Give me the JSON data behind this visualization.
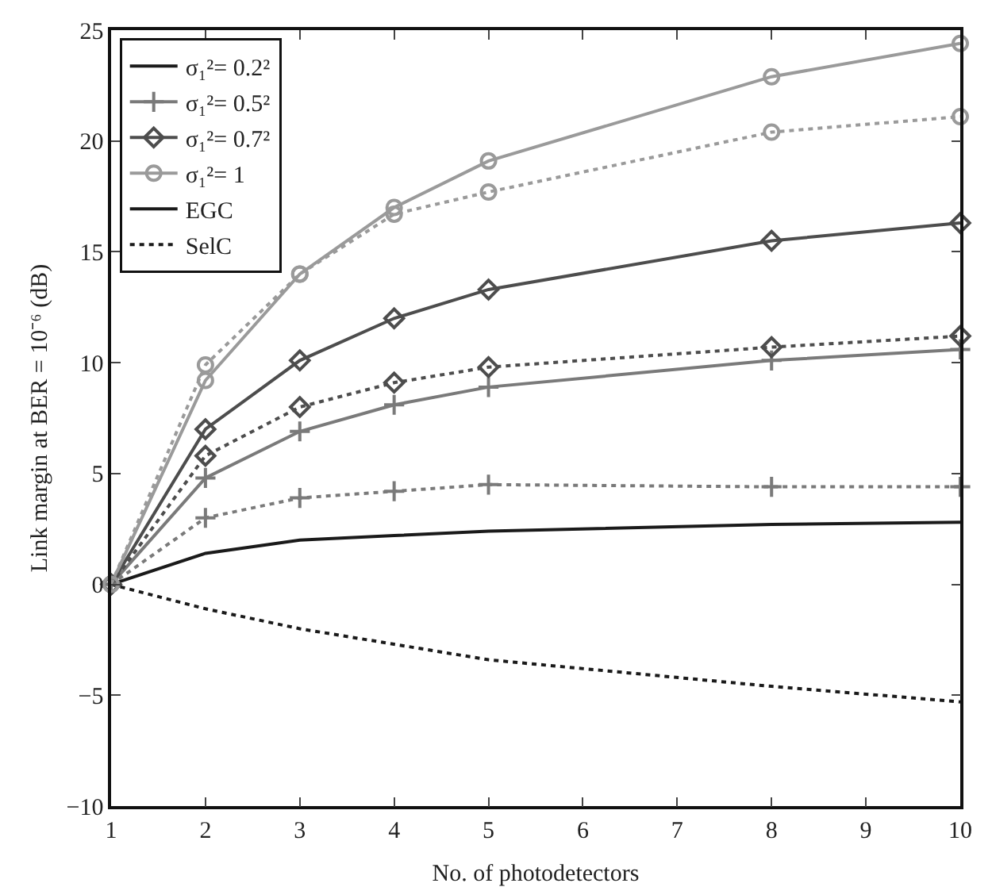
{
  "chart_data": {
    "type": "line",
    "xlabel": "No. of photodetectors",
    "ylabel": "Link margin at BER = 10⁻⁶ (dB)",
    "x": [
      1,
      2,
      3,
      4,
      5,
      8,
      10
    ],
    "series": [
      {
        "name": "σ₁²= 0.2²",
        "color": "#1a1a1a",
        "marker": "none",
        "line_style": "solid",
        "values": [
          0,
          1.4,
          2.0,
          2.2,
          2.4,
          2.7,
          2.8
        ]
      },
      {
        "name": "σ₁²= 0.5²",
        "color": "#7a7a7a",
        "marker": "cross",
        "line_style": "solid",
        "values": [
          0,
          4.8,
          6.9,
          8.1,
          8.9,
          10.1,
          10.6
        ]
      },
      {
        "name": "σ₁²= 0.7²",
        "color": "#4d4d4d",
        "marker": "diamond",
        "line_style": "solid",
        "values": [
          0,
          7.0,
          10.1,
          12.0,
          13.3,
          15.5,
          16.3
        ]
      },
      {
        "name": "σ₁²= 1",
        "color": "#9a9a9a",
        "marker": "circle",
        "line_style": "solid",
        "values": [
          0,
          9.2,
          14.0,
          17.0,
          19.1,
          22.9,
          24.4
        ]
      },
      {
        "color": "#1a1a1a",
        "marker": "none",
        "line_style": "dotted",
        "values": [
          0,
          -1.1,
          -2.0,
          -2.7,
          -3.4,
          -4.6,
          -5.3
        ]
      },
      {
        "color": "#7a7a7a",
        "marker": "cross",
        "line_style": "dotted",
        "values": [
          0,
          3.0,
          3.9,
          4.2,
          4.5,
          4.4,
          4.4
        ]
      },
      {
        "color": "#4d4d4d",
        "marker": "diamond",
        "line_style": "dotted",
        "values": [
          0,
          5.8,
          8.0,
          9.1,
          9.8,
          10.7,
          11.2
        ]
      },
      {
        "color": "#9a9a9a",
        "marker": "circle",
        "line_style": "dotted",
        "values": [
          0,
          9.9,
          14.0,
          16.7,
          17.7,
          20.4,
          21.1
        ]
      },
      {
        "name": "EGC",
        "color": "#1a1a1a",
        "marker": "none",
        "line_style": "solid",
        "values": [
          null,
          null,
          null,
          null,
          null,
          null,
          null
        ]
      },
      {
        "name": "SelC",
        "color": "#1a1a1a",
        "marker": "none",
        "line_style": "dotted",
        "values": [
          null,
          null,
          null,
          null,
          null,
          null,
          null
        ]
      }
    ],
    "xlim": [
      1,
      10
    ],
    "xticks": [
      1,
      2,
      3,
      4,
      5,
      6,
      7,
      8,
      9,
      10
    ],
    "ylim": [
      -10,
      25
    ],
    "yticks": [
      -10,
      -5,
      0,
      5,
      10,
      15,
      20,
      25
    ],
    "grid": false,
    "legend": "top left"
  }
}
